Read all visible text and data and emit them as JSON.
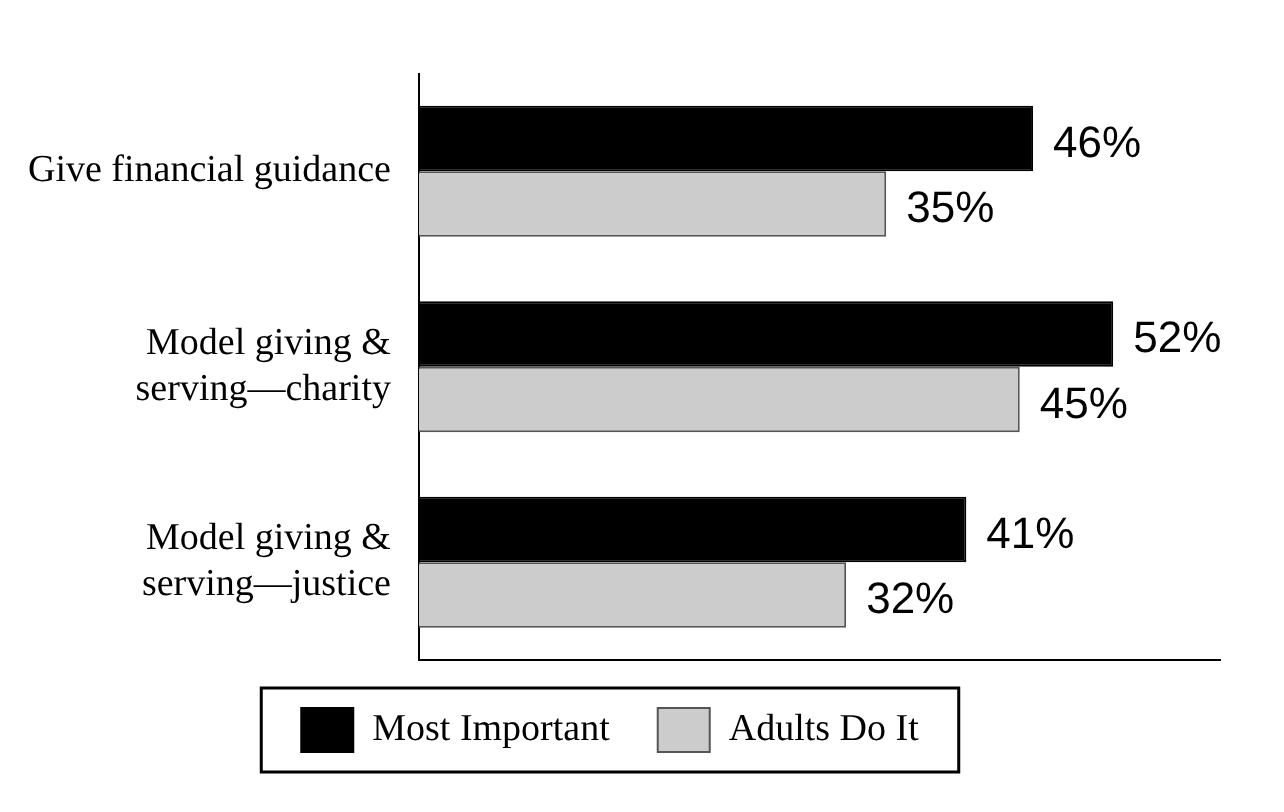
{
  "chart_data": {
    "type": "bar",
    "orientation": "horizontal",
    "categories": [
      "Give financial guidance",
      "Model giving & serving—charity",
      "Model giving & serving—justice"
    ],
    "series": [
      {
        "name": "Most Important",
        "color": "#000000",
        "values": [
          46,
          52,
          41
        ],
        "value_labels": [
          "46%",
          "52%",
          "41%"
        ]
      },
      {
        "name": "Adults Do It",
        "color": "#cccccc",
        "values": [
          35,
          45,
          32
        ],
        "value_labels": [
          "35%",
          "45%",
          "32%"
        ]
      }
    ],
    "xlim": [
      0,
      60
    ],
    "tick_labels": "y",
    "grid": false,
    "legend": "bottom"
  }
}
